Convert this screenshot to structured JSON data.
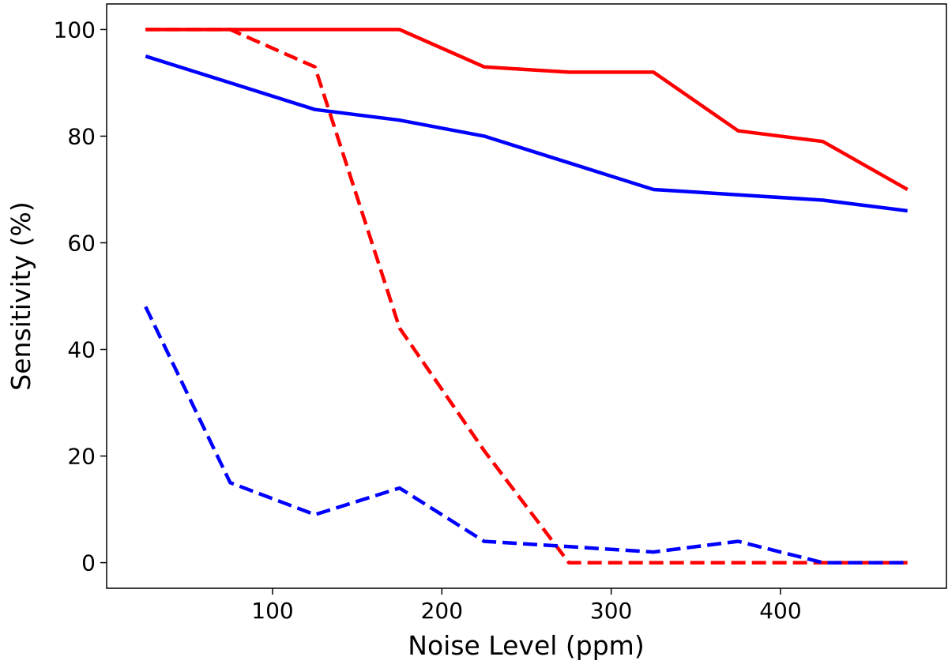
{
  "chart_data": {
    "type": "line",
    "title": "",
    "xlabel": "Noise Level (ppm)",
    "ylabel": "Sensitivity (%)",
    "xlim": [
      2,
      498
    ],
    "ylim": [
      -4.8,
      104.8
    ],
    "xticks": [
      100,
      200,
      300,
      400
    ],
    "yticks": [
      0,
      20,
      40,
      60,
      80,
      100
    ],
    "x": [
      25,
      75,
      125,
      175,
      225,
      275,
      325,
      375,
      425,
      475
    ],
    "series": [
      {
        "name": "red-solid",
        "color": "#ff0000",
        "style": "solid",
        "values": [
          100,
          100,
          100,
          100,
          93,
          92,
          92,
          81,
          79,
          70
        ]
      },
      {
        "name": "blue-solid",
        "color": "#0000ff",
        "style": "solid",
        "values": [
          95,
          90,
          85,
          83,
          80,
          75,
          70,
          69,
          68,
          66
        ]
      },
      {
        "name": "red-dashed",
        "color": "#ff0000",
        "style": "dashed",
        "values": [
          100,
          100,
          93,
          44,
          21,
          0,
          0,
          0,
          0,
          0
        ]
      },
      {
        "name": "blue-dashed",
        "color": "#0000ff",
        "style": "dashed",
        "values": [
          48,
          15,
          9,
          14,
          4,
          3,
          2,
          4,
          0,
          0
        ]
      }
    ]
  }
}
